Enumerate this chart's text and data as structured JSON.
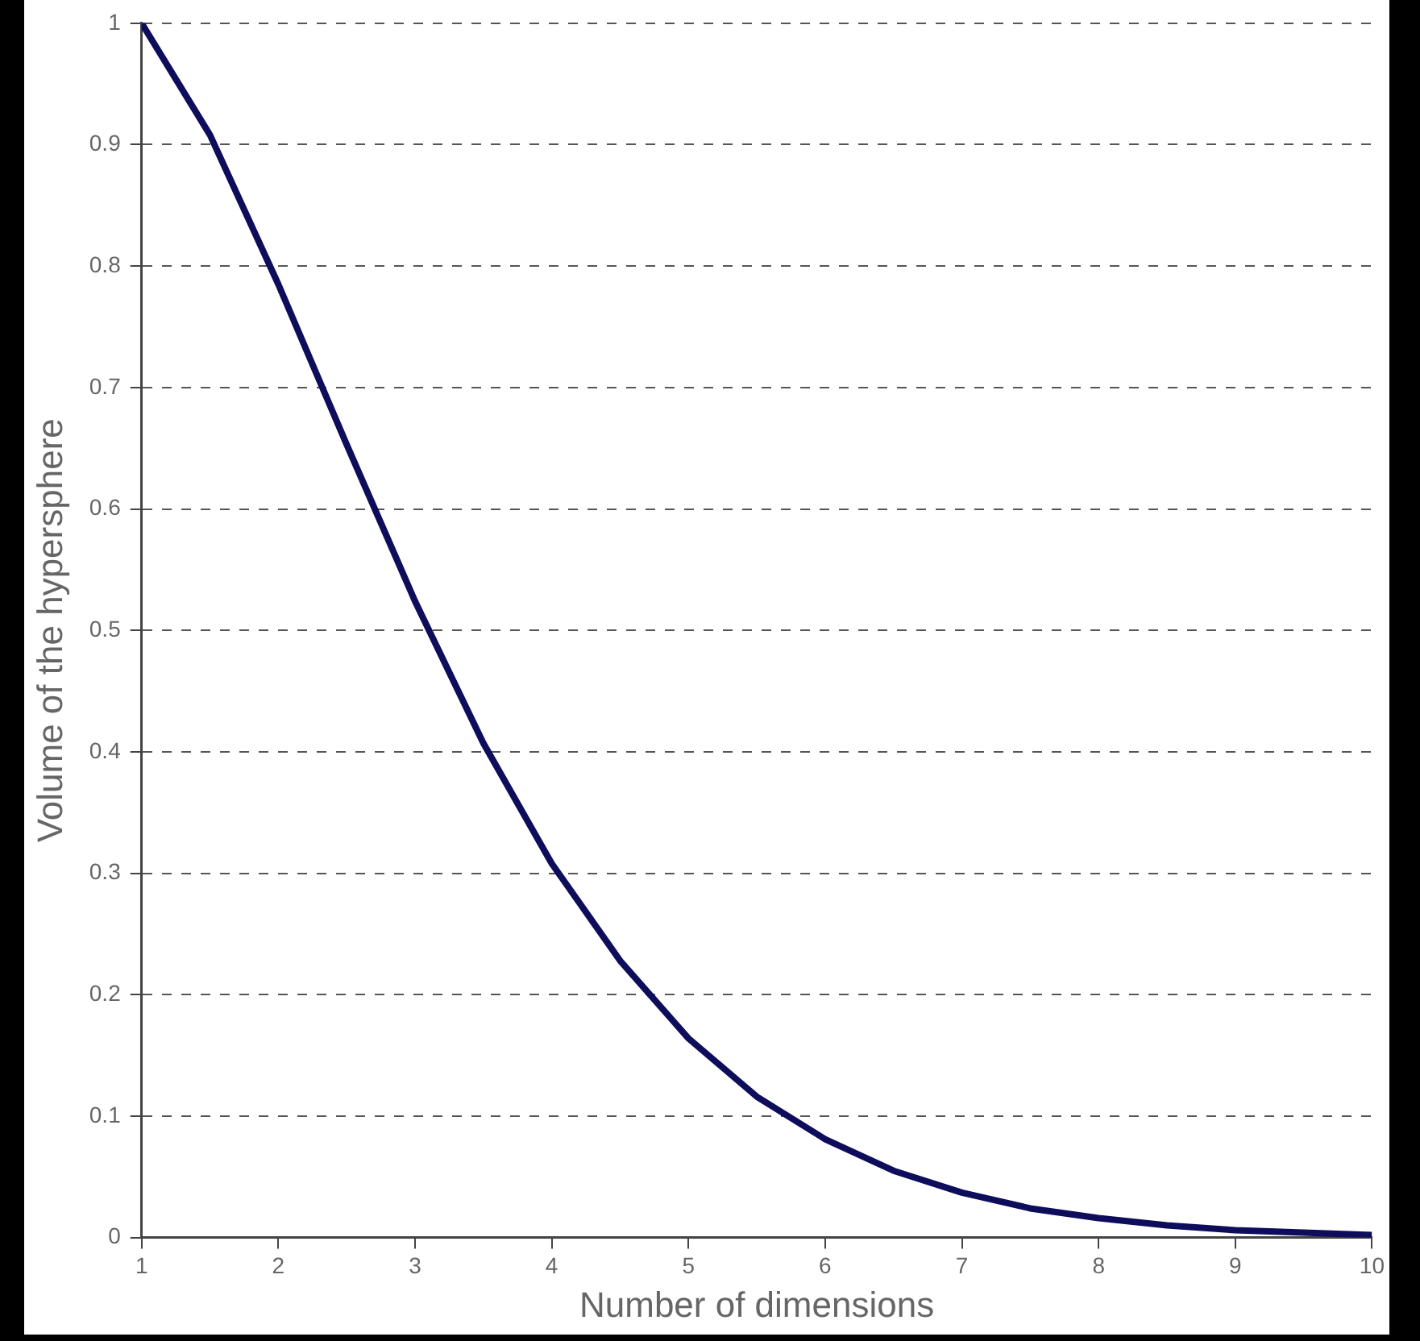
{
  "chart_data": {
    "type": "line",
    "xlabel": "Number of dimensions",
    "ylabel": "Volume of the hypersphere",
    "x": [
      1,
      1.5,
      2,
      2.5,
      3,
      3.5,
      4,
      4.5,
      5,
      5.5,
      6,
      6.5,
      7,
      7.5,
      8,
      8.5,
      9,
      9.5,
      10
    ],
    "series": [
      {
        "color": "#0d0d5c",
        "values": [
          1,
          0.908,
          0.785,
          0.653,
          0.524,
          0.407,
          0.308,
          0.228,
          0.164,
          0.116,
          0.081,
          0.055,
          0.037,
          0.024,
          0.016,
          0.01,
          0.006,
          0.004,
          0.002
        ]
      }
    ],
    "xlim": [
      1,
      10
    ],
    "xticks": [
      1,
      2,
      3,
      4,
      5,
      6,
      7,
      8,
      9,
      10
    ],
    "ylim": [
      0,
      1
    ],
    "yticks": [
      0,
      0.1,
      0.2,
      0.3,
      0.4,
      0.5,
      0.6,
      0.7,
      0.8,
      0.9,
      1
    ],
    "grid": "y",
    "legend": false,
    "marker": "none",
    "line_style": "solid"
  }
}
